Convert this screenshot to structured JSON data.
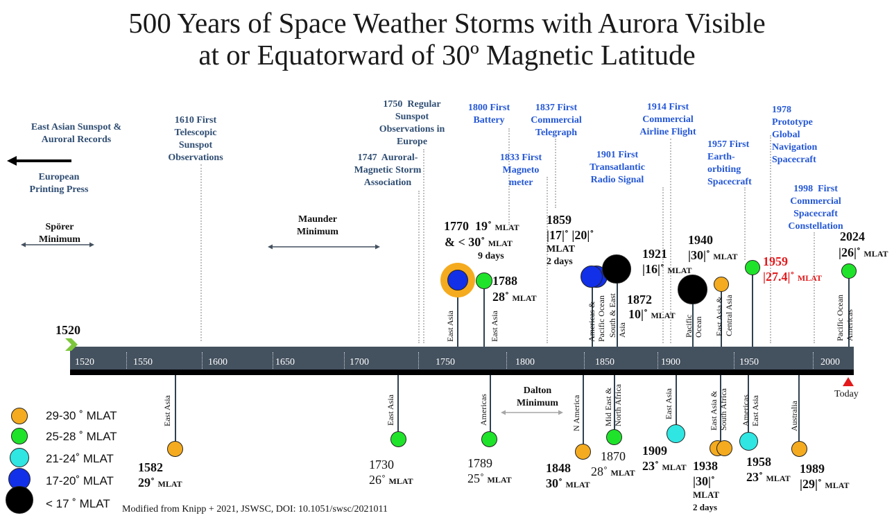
{
  "title": {
    "line1": "500 Years of  Space Weather Storms with Aurora Visible",
    "line2": "at or Equatorward of 30º Magnetic Latitude"
  },
  "colors": {
    "mlat_29_30": "#f5ab1f",
    "mlat_25_28": "#1fe32a",
    "mlat_21_24": "#2fe6e2",
    "mlat_17_20": "#1230e8",
    "mlat_lt_17": "#000000",
    "timeline_bar": "#44515f",
    "milestone_blue": "#2457d6",
    "milestone_dark": "#2f4d72",
    "highlight_red": "#e3191b"
  },
  "timeline": {
    "start_label": "1520",
    "ticks": [
      "1520",
      "1550",
      "1600",
      "1650",
      "1700",
      "1750",
      "1800",
      "1850",
      "1900",
      "1950",
      "2000"
    ],
    "today_label": "Today"
  },
  "milestones": [
    {
      "text": "East Asian Sunspot &\nAuroral Records",
      "style": "dk"
    },
    {
      "text": "European\nPrinting Press",
      "style": "dk"
    },
    {
      "text": "1610 First\nTelescopic\nSunspot\nObservations",
      "style": "dk"
    },
    {
      "text": "1747  Auroral-\nMagnetic Storm\nAssociation",
      "style": "dk"
    },
    {
      "text": "1750  Regular\nSunspot\nObservations in\nEurope",
      "style": "dk"
    },
    {
      "text": "1800 First\nBattery",
      "style": "blue"
    },
    {
      "text": "1837 First\nCommercial\nTelegraph",
      "style": "blue"
    },
    {
      "text": "1833 First\nMagneto\nmeter",
      "style": "blue"
    },
    {
      "text": "1901 First\nTransatlantic\nRadio Signal",
      "style": "blue"
    },
    {
      "text": "1914 First\nCommercial\nAirline Flight",
      "style": "blue"
    },
    {
      "text": "1957 First\nEarth-\norbiting\nSpacecraft",
      "style": "blue"
    },
    {
      "text": "1978\nPrototype\nGlobal\nNavigation\nSpacecraft",
      "style": "blue"
    },
    {
      "text": "1998  First\nCommercial\nSpacecraft\nConstellation",
      "style": "blue"
    }
  ],
  "minima": [
    {
      "label": "Spörer\nMinimum"
    },
    {
      "label": "Maunder\nMinimum"
    },
    {
      "label": "Dalton\nMinimum"
    }
  ],
  "events_above": [
    {
      "year": "1770  19˚",
      "mlat": "MLAT",
      "line2": "& < 30˚",
      "line2_sub": "MLAT",
      "note": "9 days",
      "region": "East Asia",
      "category": "mlat_17_20"
    },
    {
      "year": "1788",
      "mlat": "28˚",
      "sub": "MLAT",
      "region": "East Asia",
      "category": "mlat_25_28"
    },
    {
      "year": "1859",
      "mlat": "|17|˚ |20|˚",
      "sub": "MLAT",
      "note": "2 days",
      "region": "Americas & Pacific Ocean",
      "category": "mlat_17_20"
    },
    {
      "year": "1872",
      "mlat": "10|˚",
      "sub": "MLAT",
      "region": "South & East Asia",
      "category": "mlat_lt_17"
    },
    {
      "year": "1921",
      "mlat": "|16|˚",
      "sub": "MLAT",
      "region": "Pacific Ocean",
      "category": "mlat_lt_17"
    },
    {
      "year": "1940",
      "mlat": "|30|˚",
      "sub": "MLAT",
      "region": "East Asia & Central Asia",
      "category": "mlat_29_30"
    },
    {
      "year": "1959",
      "mlat": "|27.4|˚",
      "sub": "MLAT",
      "region": "",
      "category": "mlat_25_28"
    },
    {
      "year": "2024",
      "mlat": "|26|˚",
      "sub": "MLAT",
      "region": "Pacific Ocean Americas",
      "category": "mlat_25_28"
    }
  ],
  "events_below": [
    {
      "year": "1582",
      "mlat": "29˚",
      "sub": "MLAT",
      "region": "East Asia",
      "category": "mlat_29_30"
    },
    {
      "year": "1730",
      "mlat": "26˚",
      "sub": "MLAT",
      "region": "East Asia",
      "category": "mlat_25_28"
    },
    {
      "year": "1789",
      "mlat": "25˚",
      "sub": "MLAT",
      "region": "Americas",
      "category": "mlat_25_28"
    },
    {
      "year": "1848",
      "mlat": "30˚",
      "sub": "MLAT",
      "region": "N America",
      "category": "mlat_29_30"
    },
    {
      "year": "1870",
      "mlat": "28˚",
      "sub": "MLAT",
      "region": "Mid East & North Africa",
      "category": "mlat_25_28"
    },
    {
      "year": "1909",
      "mlat": "23˚",
      "sub": "MLAT",
      "region": "East Asia",
      "category": "mlat_21_24"
    },
    {
      "year": "1938",
      "mlat": "|30|˚",
      "sub": "MLAT",
      "note": "2 days",
      "region": "East Asia & South Africa",
      "category": "mlat_29_30"
    },
    {
      "year": "1958",
      "mlat": "23˚",
      "sub": "MLAT",
      "region": "Americas East Asia",
      "category": "mlat_21_24"
    },
    {
      "year": "1989",
      "mlat": "|29|˚",
      "sub": "MLAT",
      "region": "Australia",
      "category": "mlat_29_30"
    }
  ],
  "legend": [
    {
      "label": "29-30 ˚ MLAT",
      "category": "mlat_29_30"
    },
    {
      "label": "25-28 ˚ MLAT",
      "category": "mlat_25_28"
    },
    {
      "label": "21-24˚ MLAT",
      "category": "mlat_21_24"
    },
    {
      "label": "17-20˚ MLAT",
      "category": "mlat_17_20"
    },
    {
      "label": "< 17 ˚ MLAT",
      "category": "mlat_lt_17"
    }
  ],
  "credit": "Modified from Knipp + 2021, JSWSC, DOI: 10.1051/swsc/2021011"
}
